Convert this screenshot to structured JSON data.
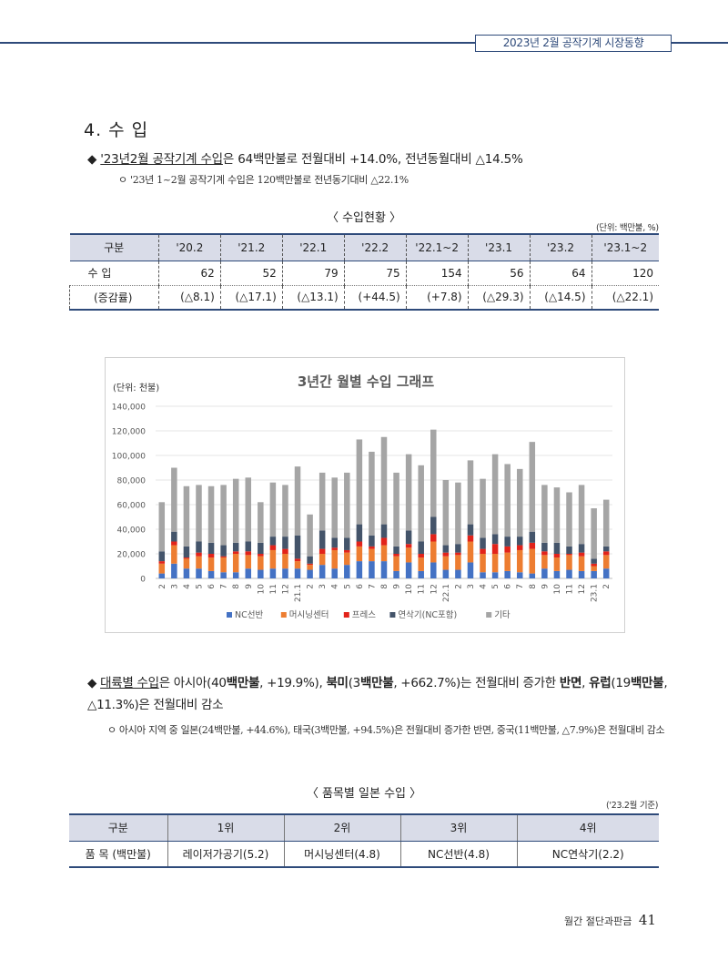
{
  "header": {
    "title": "2023년 2월 공작기계 시장동향"
  },
  "section": {
    "title": "4. 수 입",
    "bullet_symbol": "◆",
    "bullet1_underlined": "'23년2월 공작기계 수입",
    "bullet1_rest": "은  64백만불로 전월대비 +14.0%, 전년동월대비 △14.5%",
    "sub_symbol": "ㅇ",
    "sub1": "'23년 1~2월 공작기계 수입은 120백만불로 전년동기대비 △22.1%"
  },
  "table1": {
    "caption": "〈 수입현황 〉",
    "unit": "(단위: 백만불, %)",
    "headers": [
      "구분",
      "'20.2",
      "'21.2",
      "'22.1",
      "'22.2",
      "'22.1~2",
      "'23.1",
      "'23.2",
      "'23.1~2"
    ],
    "rows": [
      [
        "수 입",
        "62",
        "52",
        "79",
        "75",
        "154",
        "56",
        "64",
        "120"
      ],
      [
        "(증감률)",
        "(△8.1)",
        "(△17.1)",
        "(△13.1)",
        "(+44.5)",
        "(+7.8)",
        "(△29.3)",
        "(△14.5)",
        "(△22.1)"
      ]
    ]
  },
  "chart_data": {
    "type": "bar",
    "stacked": true,
    "title": "3년간 월별 수입 그래프",
    "unit_label": "(단위: 천불)",
    "ylim": [
      0,
      140000
    ],
    "yticks": [
      "0",
      "20,000",
      "40,000",
      "60,000",
      "80,000",
      "100,000",
      "120,000",
      "140,000"
    ],
    "categories": [
      "2",
      "3",
      "4",
      "5",
      "6",
      "7",
      "8",
      "9",
      "10",
      "11",
      "12",
      "21.1",
      "2",
      "3",
      "4",
      "5",
      "6",
      "7",
      "8",
      "9",
      "10",
      "11",
      "12",
      "22.1",
      "2",
      "3",
      "4",
      "5",
      "6",
      "7",
      "8",
      "9",
      "10",
      "11",
      "12",
      "23.1",
      "2"
    ],
    "series": [
      {
        "name": "NC선반",
        "color": "#4472c4",
        "values": [
          4000,
          12000,
          8000,
          8000,
          6000,
          5000,
          5000,
          8000,
          7000,
          8000,
          8000,
          8000,
          7000,
          11000,
          8000,
          11000,
          14000,
          14000,
          14000,
          6000,
          13000,
          6000,
          13000,
          7000,
          7000,
          13000,
          5000,
          5000,
          6000,
          5000,
          4000,
          8000,
          6000,
          7000,
          6000,
          6000,
          8000
        ]
      },
      {
        "name": "머시닝센터",
        "color": "#ed7d31",
        "values": [
          8000,
          15000,
          8000,
          10000,
          11000,
          12000,
          15000,
          11000,
          11000,
          15000,
          12000,
          6000,
          4000,
          9000,
          15000,
          10000,
          12000,
          10000,
          13000,
          12000,
          12000,
          11000,
          17000,
          11000,
          12000,
          17000,
          15000,
          15000,
          15000,
          18000,
          20000,
          11000,
          11000,
          12000,
          12000,
          4000,
          11000
        ]
      },
      {
        "name": "프레스",
        "color": "#e2231a",
        "values": [
          2000,
          3000,
          1000,
          3000,
          3000,
          1000,
          2000,
          3000,
          2000,
          4000,
          4000,
          2000,
          1000,
          4000,
          2000,
          2000,
          4000,
          2000,
          6000,
          2000,
          3000,
          3000,
          6000,
          3000,
          2000,
          5000,
          4000,
          8000,
          5000,
          4000,
          5000,
          3000,
          3000,
          1000,
          3000,
          2000,
          3000
        ]
      },
      {
        "name": "연삭기(NC포함)",
        "color": "#44546a",
        "values": [
          8000,
          8000,
          9000,
          9000,
          9000,
          9000,
          7000,
          8000,
          9000,
          7000,
          10000,
          19000,
          6000,
          15000,
          8000,
          10000,
          14000,
          9000,
          11000,
          6000,
          11000,
          10000,
          14000,
          6000,
          7000,
          9000,
          9000,
          8000,
          8000,
          7000,
          9000,
          7000,
          9000,
          6000,
          7000,
          4000,
          4000
        ]
      },
      {
        "name": "기타",
        "color": "#a5a5a5",
        "values": [
          40000,
          52000,
          49000,
          46000,
          46000,
          49000,
          52000,
          52000,
          33000,
          44000,
          42000,
          56000,
          34000,
          47000,
          49000,
          53000,
          69000,
          68000,
          71000,
          60000,
          62000,
          62000,
          71000,
          53000,
          50000,
          52000,
          48000,
          65000,
          59000,
          55000,
          73000,
          47000,
          45000,
          44000,
          48000,
          41000,
          38000
        ]
      }
    ],
    "legend_position": "bottom"
  },
  "section2": {
    "bullet2_p1": "대륙별 수입",
    "bullet2_p2": "은 아시아(40",
    "bullet2_p3": "백만불",
    "bullet2_p4": ", +19.9%), ",
    "bullet2_p5": "북미",
    "bullet2_p6": "(3",
    "bullet2_p7": "백만불",
    "bullet2_p8": ", +662.7%)",
    "bullet2_p9": "는 전월대비 증가한 ",
    "bullet2_p10": "반면",
    "bullet2_p11": ", ",
    "bullet2_p12": "유럽",
    "bullet2_p13": "(19",
    "bullet2_p14": "백만불",
    "bullet2_p15": ", △11.3%)은 전월대비 감소",
    "sub2": "아시아 지역 중 일본(24백만불, +44.6%), 태국(3백만불, +94.5%)은 전월대비 증가한 반면, 중국(11백만불, △7.9%)은 전월대비 감소"
  },
  "table2": {
    "caption": "〈 품목별 일본 수입 〉",
    "unit": "('23.2월 기준)",
    "headers": [
      "구분",
      "1위",
      "2위",
      "3위",
      "4위"
    ],
    "row": [
      "품 목 (백만불)",
      "레이저가공기(5.2)",
      "머시닝센터(4.8)",
      "NC선반(4.8)",
      "NC연삭기(2.2)"
    ]
  },
  "footer": {
    "label": "월간 절단과판금",
    "page": "41"
  }
}
